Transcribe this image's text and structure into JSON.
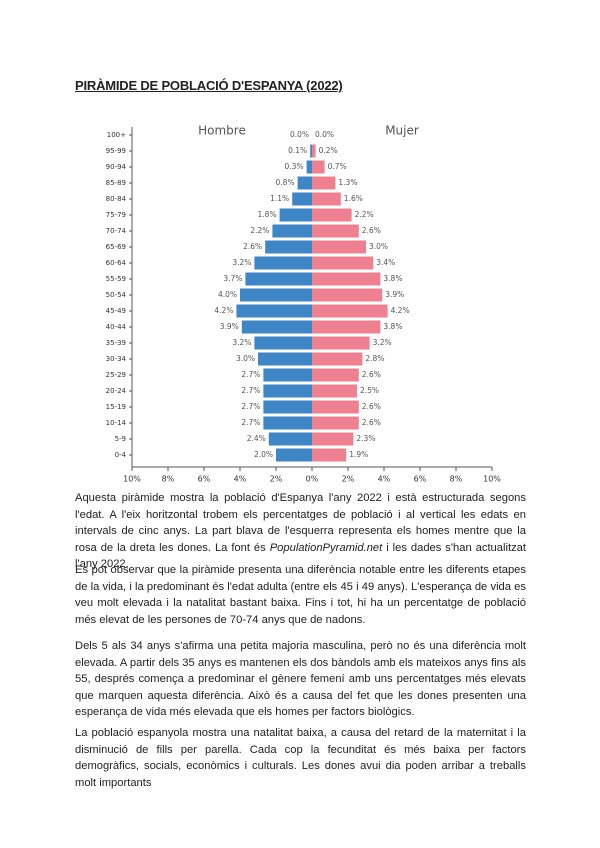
{
  "title": "PIRÀMIDE DE POBLACIÓ D'ESPANYA (2022)",
  "chart_data": {
    "type": "pyramid",
    "categories": [
      "0-4",
      "5-9",
      "10-14",
      "15-19",
      "20-24",
      "25-29",
      "30-34",
      "35-39",
      "40-44",
      "45-49",
      "50-54",
      "55-59",
      "60-64",
      "65-69",
      "70-74",
      "75-79",
      "80-84",
      "85-89",
      "90-94",
      "95-99",
      "100+"
    ],
    "series": [
      {
        "name": "Hombre",
        "color": "#3f86c7",
        "values": [
          -2.0,
          -2.4,
          -2.7,
          -2.7,
          -2.7,
          -2.7,
          -3.0,
          -3.2,
          -3.9,
          -4.2,
          -4.0,
          -3.7,
          -3.2,
          -2.6,
          -2.2,
          -1.8,
          -1.1,
          -0.8,
          -0.3,
          -0.1,
          0
        ],
        "value_labels": [
          "2.0%",
          "2.4%",
          "2.7%",
          "2.7%",
          "2.7%",
          "2.7%",
          "3.0%",
          "3.2%",
          "3.9%",
          "4.2%",
          "4.0%",
          "3.7%",
          "3.2%",
          "2.6%",
          "2.2%",
          "1.8%",
          "1.1%",
          "0.8%",
          "0.3%",
          "0.1%",
          "0.0%"
        ]
      },
      {
        "name": "Mujer",
        "color": "#ef808f",
        "values": [
          1.9,
          2.3,
          2.6,
          2.6,
          2.5,
          2.6,
          2.8,
          3.2,
          3.8,
          4.2,
          3.9,
          3.8,
          3.4,
          3.0,
          2.6,
          2.2,
          1.6,
          1.3,
          0.7,
          0.2,
          0.0
        ],
        "value_labels": [
          "1.9%",
          "2.3%",
          "2.6%",
          "2.6%",
          "2.5%",
          "2.6%",
          "2.8%",
          "3.2%",
          "3.8%",
          "4.2%",
          "3.9%",
          "3.8%",
          "3.4%",
          "3.0%",
          "2.6%",
          "2.2%",
          "1.6%",
          "1.3%",
          "0.7%",
          "0.2%",
          "0.0%"
        ]
      }
    ],
    "xlim": [
      -10,
      10
    ],
    "xticks": [
      {
        "value": -10,
        "label": "10%"
      },
      {
        "value": -8,
        "label": "8%"
      },
      {
        "value": -6,
        "label": "6%"
      },
      {
        "value": -4,
        "label": "4%"
      },
      {
        "value": -2,
        "label": "2%"
      },
      {
        "value": 0,
        "label": "0%"
      },
      {
        "value": 2,
        "label": "2%"
      },
      {
        "value": 4,
        "label": "4%"
      },
      {
        "value": 6,
        "label": "6%"
      },
      {
        "value": 8,
        "label": "8%"
      },
      {
        "value": 10,
        "label": "10%"
      }
    ],
    "grid": false
  },
  "paragraphs": [
    [
      "Aquesta piràmide mostra la població d'Espanya l'any 2022 i està estructurada segons l'edat. A l'eix horitzontal trobem els percentatges de població i al vertical les edats en intervals de cinc anys. La part blava de l'esquerra representa els homes mentre que la rosa de la dreta les dones. La font és ",
      "PopulationPyramid.net",
      " i les dades s'han actualitzat l'any 2022."
    ],
    [
      "Es pot observar que la piràmide presenta una diferència notable entre les diferents etapes de la vida, i la predominant és l'edat adulta (entre els 45 i 49 anys). L'esperança de vida es veu molt elevada i la natalitat bastant baixa. Fins i tot, hi ha un percentatge de població més elevat de les persones de 70-74 anys que de nadons."
    ],
    [
      "Dels 5 als 34 anys s'afirma una petita majoria masculina, però no és una diferència molt elevada. A partir dels 35 anys es mantenen els dos bàndols amb els mateixos anys fins als 55, després comença a predominar el gènere femení amb uns percentatges més elevats que marquen aquesta diferència. Això és a causa del fet que les dones presenten una esperança de vida més elevada que els homes per factors biològics."
    ],
    [
      "La població espanyola mostra una natalitat baixa, a causa del retard de la maternitat i la disminució de fills per parella. Cada cop la fecunditat és més baixa per factors demogràfics, socials, econòmics i culturals. Les dones avui dia poden arribar a treballs molt importants"
    ]
  ]
}
